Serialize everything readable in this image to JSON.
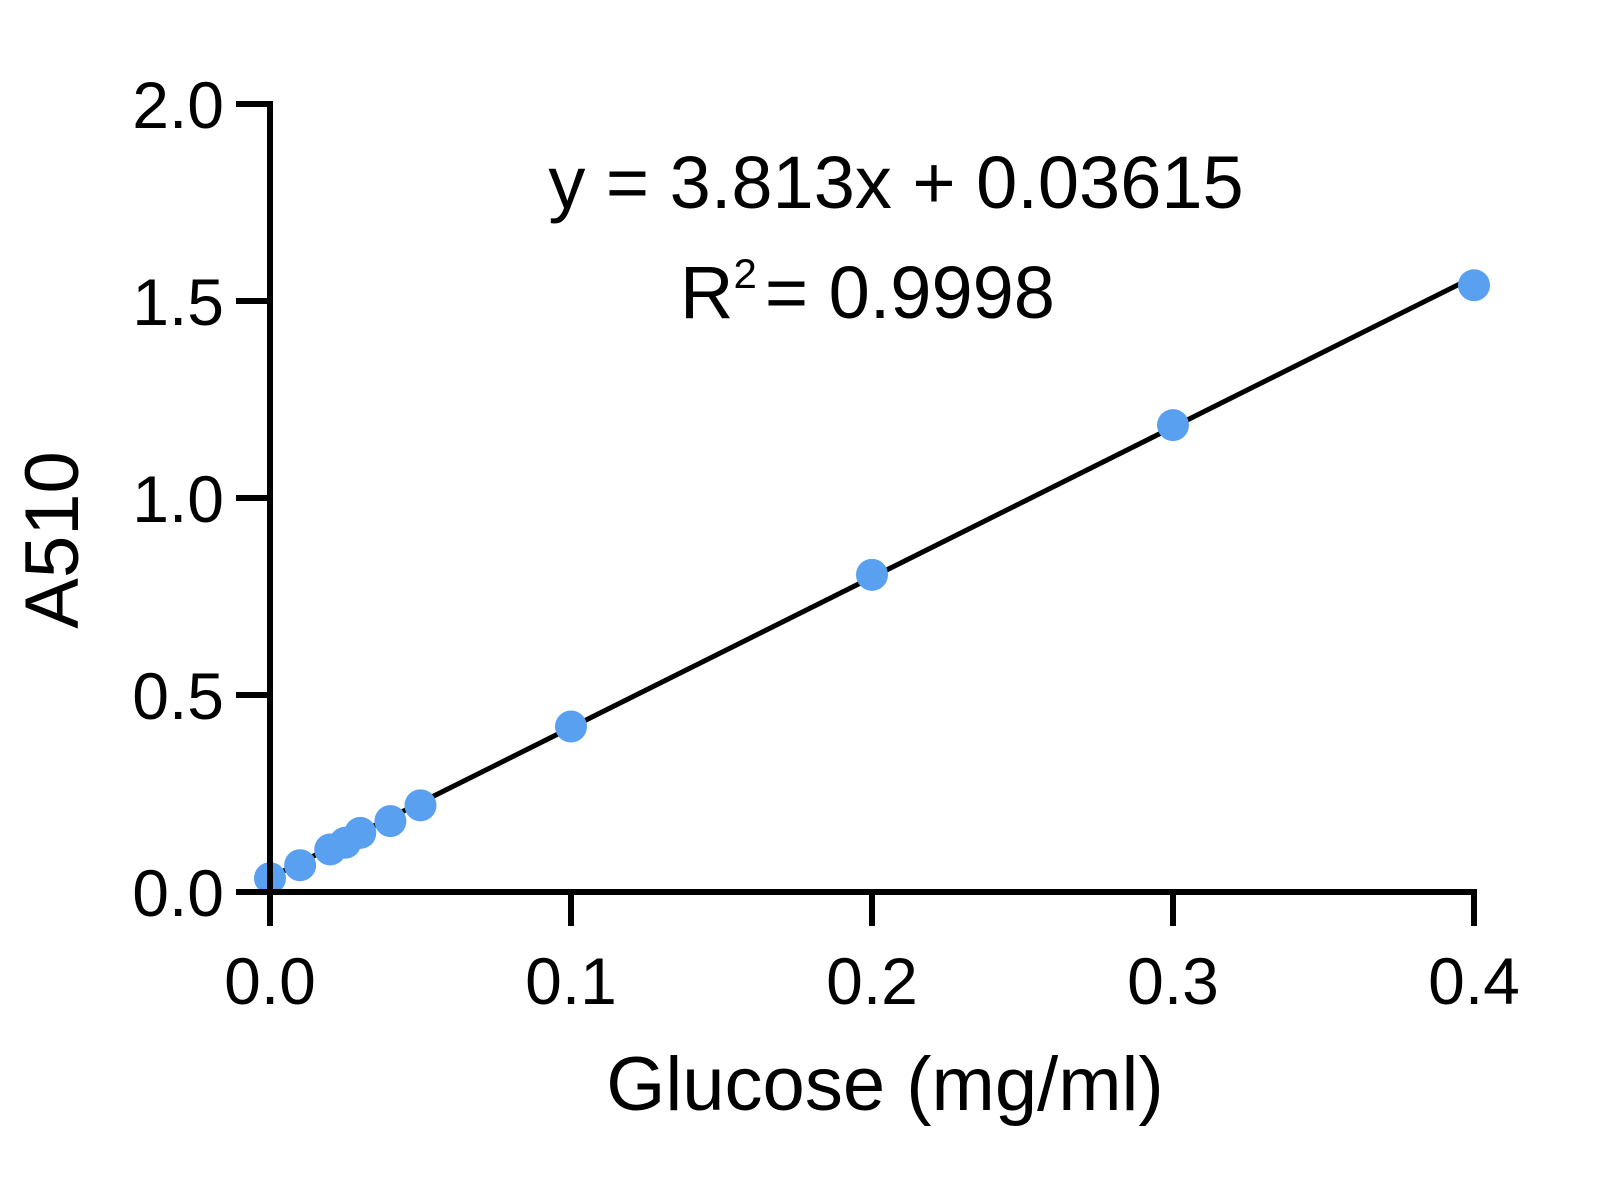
{
  "chart_data": {
    "type": "scatter",
    "xlabel": "Glucose (mg/ml)",
    "ylabel": "A510",
    "xlim": [
      0.0,
      0.4
    ],
    "ylim": [
      0.0,
      2.0
    ],
    "x_ticks": [
      "0.0",
      "0.1",
      "0.2",
      "0.3",
      "0.4"
    ],
    "y_ticks": [
      "0.0",
      "0.5",
      "1.0",
      "1.5",
      "2.0"
    ],
    "grid": false,
    "series": [
      {
        "x": [
          0.0,
          0.01,
          0.02,
          0.025,
          0.03,
          0.04,
          0.05,
          0.1,
          0.2,
          0.3,
          0.4
        ],
        "y": [
          0.035,
          0.068,
          0.108,
          0.125,
          0.15,
          0.18,
          0.22,
          0.42,
          0.805,
          1.185,
          1.54
        ],
        "color": "#5aa0f0"
      }
    ],
    "fit": {
      "slope": 3.813,
      "intercept": 0.03615,
      "color": "#000000"
    },
    "annotations": {
      "equation": "y = 3.813x + 0.03615",
      "r2_prefix": "R",
      "r2_superscript": "2",
      "r2_value": "= 0.9998"
    }
  }
}
